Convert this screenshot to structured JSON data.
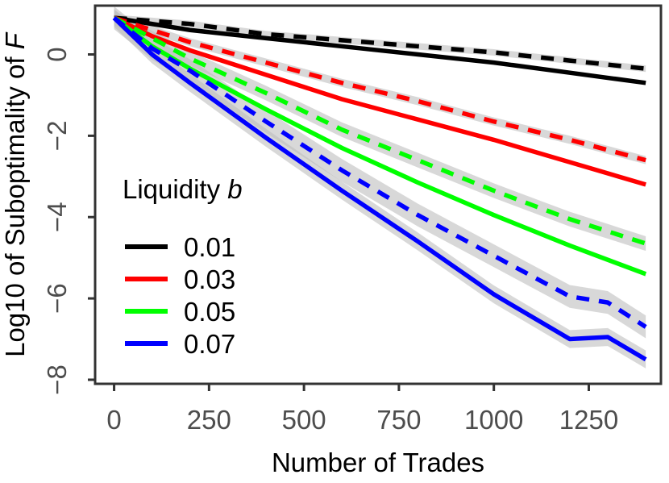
{
  "chart_data": {
    "type": "line",
    "xlabel": "Number of Trades",
    "ylabel_prefix": "Log10 of Suboptimality of ",
    "ylabel_var": "F",
    "xlim": [
      -50,
      1440
    ],
    "ylim": [
      -8.1,
      1.2
    ],
    "x_ticks": [
      0,
      250,
      500,
      750,
      1000,
      1250
    ],
    "y_ticks": [
      0,
      -2,
      -4,
      -6,
      -8
    ],
    "x_tick_labels": [
      "0",
      "250",
      "500",
      "750",
      "1000",
      "1250"
    ],
    "y_tick_labels": [
      "0",
      "−2",
      "−4",
      "−6",
      "−8"
    ],
    "grid": false,
    "legend": {
      "title_prefix": "Liquidity ",
      "title_var": "b",
      "position": "inside-left",
      "entries": [
        "0.01",
        "0.03",
        "0.05",
        "0.07"
      ]
    },
    "series": [
      {
        "name": "0.01",
        "color": "#000000",
        "linestyle": "solid",
        "x": [
          0,
          200,
          400,
          600,
          800,
          1000,
          1200,
          1400
        ],
        "y": [
          0.9,
          0.6,
          0.4,
          0.2,
          0.0,
          -0.2,
          -0.45,
          -0.7
        ],
        "band": 0.02
      },
      {
        "name": "0.01",
        "color": "#000000",
        "linestyle": "dashed",
        "x": [
          0,
          200,
          400,
          600,
          800,
          1000,
          1200,
          1400
        ],
        "y": [
          0.9,
          0.75,
          0.5,
          0.35,
          0.2,
          0.05,
          -0.15,
          -0.35
        ],
        "band": 0.08
      },
      {
        "name": "0.03",
        "color": "#ff0000",
        "linestyle": "solid",
        "x": [
          0,
          100,
          200,
          400,
          600,
          800,
          1000,
          1200,
          1400
        ],
        "y": [
          0.9,
          0.45,
          0.1,
          -0.5,
          -1.1,
          -1.6,
          -2.1,
          -2.65,
          -3.2
        ],
        "band": 0.03
      },
      {
        "name": "0.03",
        "color": "#ff0000",
        "linestyle": "dashed",
        "x": [
          0,
          100,
          200,
          400,
          600,
          800,
          1000,
          1200,
          1400
        ],
        "y": [
          0.9,
          0.6,
          0.3,
          -0.2,
          -0.7,
          -1.15,
          -1.65,
          -2.1,
          -2.6
        ],
        "band": 0.1
      },
      {
        "name": "0.05",
        "color": "#00ff00",
        "linestyle": "solid",
        "x": [
          0,
          100,
          200,
          400,
          600,
          800,
          1000,
          1200,
          1400
        ],
        "y": [
          0.9,
          0.2,
          -0.35,
          -1.35,
          -2.3,
          -3.15,
          -3.95,
          -4.7,
          -5.4
        ],
        "band": 0.06
      },
      {
        "name": "0.05",
        "color": "#00ff00",
        "linestyle": "dashed",
        "x": [
          0,
          100,
          200,
          400,
          600,
          800,
          1000,
          1200,
          1400
        ],
        "y": [
          0.9,
          0.4,
          -0.1,
          -0.95,
          -1.85,
          -2.6,
          -3.35,
          -4.05,
          -4.65
        ],
        "band": 0.18
      },
      {
        "name": "0.07",
        "color": "#0000ff",
        "linestyle": "solid",
        "x": [
          0,
          100,
          200,
          400,
          600,
          800,
          1000,
          1200,
          1300,
          1400
        ],
        "y": [
          0.9,
          0.0,
          -0.7,
          -2.05,
          -3.35,
          -4.6,
          -5.9,
          -7.0,
          -6.95,
          -7.5
        ],
        "band": 0.22
      },
      {
        "name": "0.07",
        "color": "#0000ff",
        "linestyle": "dashed",
        "x": [
          0,
          100,
          200,
          400,
          600,
          800,
          1000,
          1200,
          1300,
          1400
        ],
        "y": [
          0.9,
          0.15,
          -0.4,
          -1.65,
          -2.85,
          -3.95,
          -4.95,
          -5.95,
          -6.1,
          -6.7
        ],
        "band": 0.28
      }
    ]
  }
}
